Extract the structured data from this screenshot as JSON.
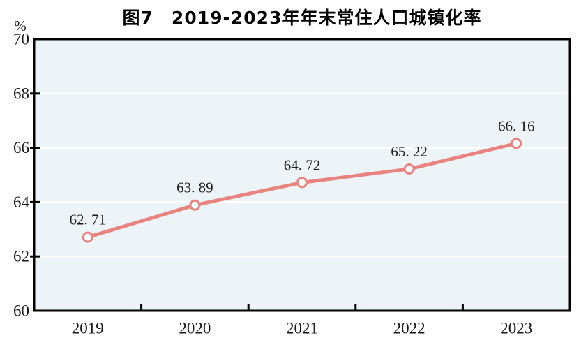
{
  "figure": {
    "title": "图7　2019-2023年年末常住人口城镇化率",
    "unit_label": "%"
  },
  "chart_data": {
    "type": "line",
    "title": "图7　2019-2023年年末常住人口城镇化率",
    "series_name": "年末常住人口城镇化率",
    "categories": [
      "2019",
      "2020",
      "2021",
      "2022",
      "2023"
    ],
    "values": [
      62.71,
      63.89,
      64.72,
      65.22,
      66.16
    ],
    "point_labels": [
      "62. 71",
      "63. 89",
      "64. 72",
      "65. 22",
      "66. 16"
    ],
    "xlabel": "",
    "ylabel": "%",
    "ylim": [
      60,
      70
    ],
    "yticks": [
      60,
      62,
      64,
      66,
      68,
      70
    ],
    "grid": true,
    "legend_position": "none",
    "colors": {
      "line": "#e8837f",
      "marker_fill": "#ffffff",
      "plot_background": "#edf4f7",
      "gridline": "#ffffff",
      "axis": "#000000",
      "tick_text": "#1a1a1a"
    }
  }
}
